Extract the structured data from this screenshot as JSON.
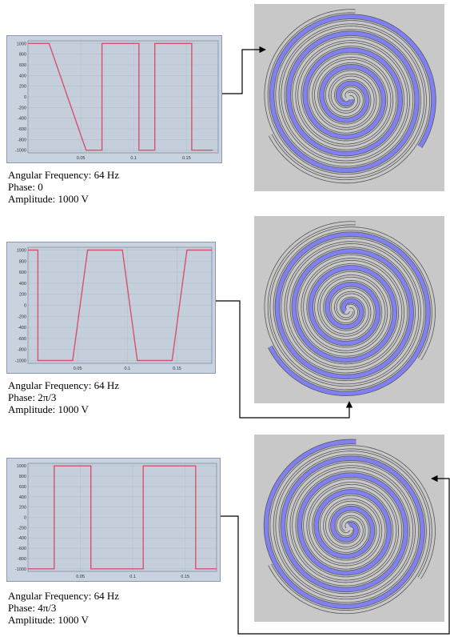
{
  "panels": [
    {
      "caption": {
        "frequency": "Angular Frequency: 64 Hz",
        "phase": "Phase: 0",
        "amplitude": "Amplitude: 1000 V"
      },
      "highlight_color": "#8080f0",
      "chart_data": {
        "type": "line",
        "yticks": [
          "1000",
          "800",
          "600",
          "400",
          "200",
          "0",
          "-200",
          "-400",
          "-600",
          "-800",
          "-1000"
        ],
        "xticks": [
          "0.05",
          "0.1",
          "0.15"
        ],
        "series": [
          {
            "x": [
              0,
              0.02,
              0.02,
              0.055,
              0.055,
              0.07,
              0.07,
              0.105,
              0.105,
              0.12,
              0.12,
              0.155,
              0.155,
              0.175
            ],
            "y": [
              1000,
              1000,
              1000,
              -1000,
              -1000,
              -1000,
              1000,
              1000,
              -1000,
              -1000,
              1000,
              1000,
              -1000,
              -1000
            ],
            "color": "#d9506a"
          }
        ],
        "xlim": [
          0,
          0.18
        ],
        "ylim": [
          -1050,
          1050
        ]
      }
    },
    {
      "caption": {
        "frequency": "Angular Frequency: 64 Hz",
        "phase": "Phase: 2π/3",
        "amplitude": "Amplitude: 1000 V"
      },
      "highlight_color": "#8080f0",
      "chart_data": {
        "type": "line",
        "yticks": [
          "1000",
          "800",
          "600",
          "400",
          "200",
          "0",
          "-200",
          "-400",
          "-600",
          "-800",
          "-1000"
        ],
        "xticks": [
          "0.05",
          "0.1",
          "0.15"
        ],
        "series": [
          {
            "x": [
              0,
              0.01,
              0.01,
              0.045,
              0.045,
              0.06,
              0.06,
              0.095,
              0.095,
              0.11,
              0.11,
              0.145,
              0.145,
              0.16,
              0.16,
              0.185
            ],
            "y": [
              1000,
              1000,
              -1000,
              -1000,
              -1000,
              1000,
              1000,
              1000,
              1000,
              -1000,
              -1000,
              -1000,
              -1000,
              1000,
              1000,
              1000
            ],
            "color": "#d9506a"
          }
        ],
        "xlim": [
          0,
          0.185
        ],
        "ylim": [
          -1050,
          1050
        ]
      }
    },
    {
      "caption": {
        "frequency": "Angular Frequency: 64 Hz",
        "phase": "Phase: 4π/3",
        "amplitude": "Amplitude: 1000 V"
      },
      "highlight_color": "#8080f0",
      "chart_data": {
        "type": "line",
        "yticks": [
          "1000",
          "800",
          "600",
          "400",
          "200",
          "0",
          "-200",
          "-400",
          "-600",
          "-800",
          "-1000"
        ],
        "xticks": [
          "0.05",
          "0.1",
          "0.15"
        ],
        "series": [
          {
            "x": [
              0,
              0.025,
              0.025,
              0.06,
              0.06,
              0.075,
              0.075,
              0.11,
              0.11,
              0.125,
              0.125,
              0.16,
              0.16,
              0.18
            ],
            "y": [
              -1000,
              -1000,
              1000,
              1000,
              -1000,
              -1000,
              -1000,
              -1000,
              1000,
              1000,
              1000,
              1000,
              -1000,
              -1000
            ],
            "color": "#d9506a"
          }
        ],
        "xlim": [
          0,
          0.18
        ],
        "ylim": [
          -1050,
          1050
        ]
      }
    }
  ]
}
